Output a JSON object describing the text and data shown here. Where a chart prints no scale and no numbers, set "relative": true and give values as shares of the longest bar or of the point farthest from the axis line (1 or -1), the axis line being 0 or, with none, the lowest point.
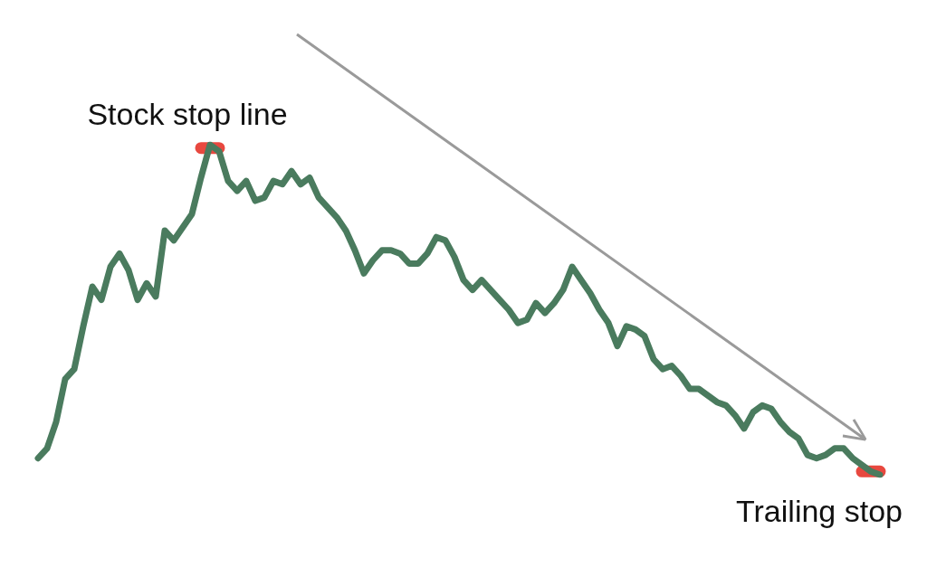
{
  "chart_data": {
    "type": "line",
    "relative": true,
    "categories": [
      null,
      null,
      null,
      null,
      null,
      null,
      null,
      null,
      null,
      null,
      null,
      null,
      null,
      null,
      null,
      null,
      null,
      null,
      null,
      null,
      null,
      null,
      null,
      null,
      null,
      null,
      null,
      null,
      null,
      null,
      null,
      null,
      null,
      null,
      null,
      null,
      null,
      null,
      null,
      null,
      null,
      null,
      null,
      null,
      null,
      null,
      null,
      null,
      null,
      null,
      null,
      null,
      null,
      null,
      null,
      null,
      null,
      null,
      null,
      null,
      null,
      null,
      null,
      null,
      null,
      null,
      null,
      null,
      null,
      null,
      null,
      null,
      null,
      null,
      null,
      null,
      null,
      null,
      null,
      null,
      null,
      null,
      null,
      null,
      null,
      null,
      null,
      null,
      null,
      null,
      null,
      null,
      null,
      null
    ],
    "series": [
      {
        "color": "#4a7b5e",
        "values": [
          0.05,
          0.08,
          0.16,
          0.29,
          0.32,
          0.45,
          0.57,
          0.53,
          0.63,
          0.67,
          0.62,
          0.53,
          0.58,
          0.54,
          0.74,
          0.71,
          0.75,
          0.79,
          0.9,
          1,
          0.98,
          0.89,
          0.86,
          0.89,
          0.83,
          0.84,
          0.89,
          0.88,
          0.92,
          0.88,
          0.9,
          0.84,
          0.81,
          0.78,
          0.74,
          0.68,
          0.61,
          0.65,
          0.68,
          0.68,
          0.67,
          0.64,
          0.64,
          0.67,
          0.72,
          0.71,
          0.66,
          0.59,
          0.56,
          0.59,
          0.56,
          0.53,
          0.5,
          0.46,
          0.47,
          0.52,
          0.49,
          0.52,
          0.56,
          0.63,
          0.59,
          0.55,
          0.5,
          0.46,
          0.39,
          0.45,
          0.44,
          0.42,
          0.35,
          0.32,
          0.33,
          0.3,
          0.26,
          0.26,
          0.24,
          0.22,
          0.21,
          0.18,
          0.14,
          0.19,
          0.21,
          0.2,
          0.16,
          0.13,
          0.11,
          0.06,
          0.05,
          0.06,
          0.08,
          0.08,
          0.05,
          0.03,
          0.01,
          0
        ]
      },
      {
        "color": "#e8483f",
        "values": [
          null,
          null,
          null,
          null,
          null,
          null,
          null,
          null,
          null,
          null,
          null,
          null,
          null,
          null,
          null,
          null,
          null,
          null,
          0.99,
          0.99,
          0.99,
          null,
          null,
          null,
          null,
          null,
          null,
          null,
          null,
          null,
          null,
          null,
          null,
          null,
          null,
          null,
          null,
          null,
          null,
          null,
          null,
          null,
          null,
          null,
          null,
          null,
          null,
          null,
          null,
          null,
          null,
          null,
          null,
          null,
          null,
          null,
          null,
          null,
          null,
          null,
          null,
          null,
          null,
          null,
          null,
          null,
          null,
          null,
          null,
          null,
          null,
          null,
          null,
          null,
          null,
          null,
          null,
          null,
          null,
          null,
          null,
          null,
          null,
          null,
          null,
          null,
          null,
          null,
          null,
          null,
          null,
          0.01,
          0.01,
          0.01
        ]
      }
    ],
    "annotations": [
      "Stock stop line",
      "Trailing stop"
    ]
  }
}
